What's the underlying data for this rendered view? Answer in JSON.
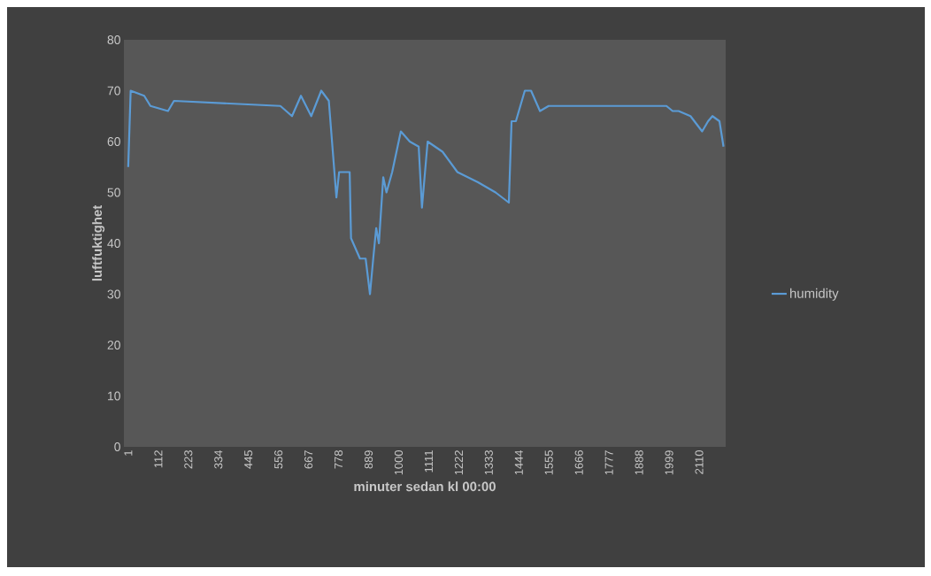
{
  "chart_data": {
    "type": "line",
    "xlabel": "minuter sedan kl 00:00",
    "ylabel": "luftfuktighet",
    "x": [
      1,
      10,
      60,
      83,
      148,
      170,
      563,
      606,
      639,
      677,
      714,
      742,
      770,
      780,
      819,
      824,
      857,
      878,
      894,
      906,
      917,
      927,
      943,
      955,
      976,
      1008,
      1041,
      1074,
      1086,
      1107,
      1162,
      1217,
      1293,
      1358,
      1407,
      1417,
      1433,
      1466,
      1489,
      1522,
      1554,
      1989,
      2012,
      2034,
      2078,
      2121,
      2143,
      2159,
      2185,
      2200
    ],
    "series": [
      {
        "name": "humidity",
        "color": "#5b9bd5",
        "values": [
          55,
          70,
          69,
          67,
          66,
          68,
          67,
          65,
          69,
          65,
          70,
          68,
          49,
          54,
          54,
          41,
          37,
          37,
          30,
          37,
          43,
          40,
          53,
          50,
          54,
          62,
          60,
          59,
          47,
          60,
          58,
          54,
          52,
          50,
          48,
          64,
          64,
          70,
          70,
          66,
          67,
          67,
          66,
          66,
          65,
          62,
          64,
          65,
          64,
          59
        ]
      }
    ],
    "xlim": [
      -15,
      2208
    ],
    "xticks": [
      1,
      112,
      223,
      334,
      445,
      556,
      667,
      778,
      889,
      1000,
      1111,
      1222,
      1333,
      1444,
      1555,
      1666,
      1777,
      1888,
      1999,
      2110
    ],
    "ylim": [
      0,
      80
    ],
    "yticks": [
      0,
      10,
      20,
      30,
      40,
      50,
      60,
      70,
      80
    ],
    "legend": "right",
    "marker": "none",
    "line_style": "solid"
  }
}
